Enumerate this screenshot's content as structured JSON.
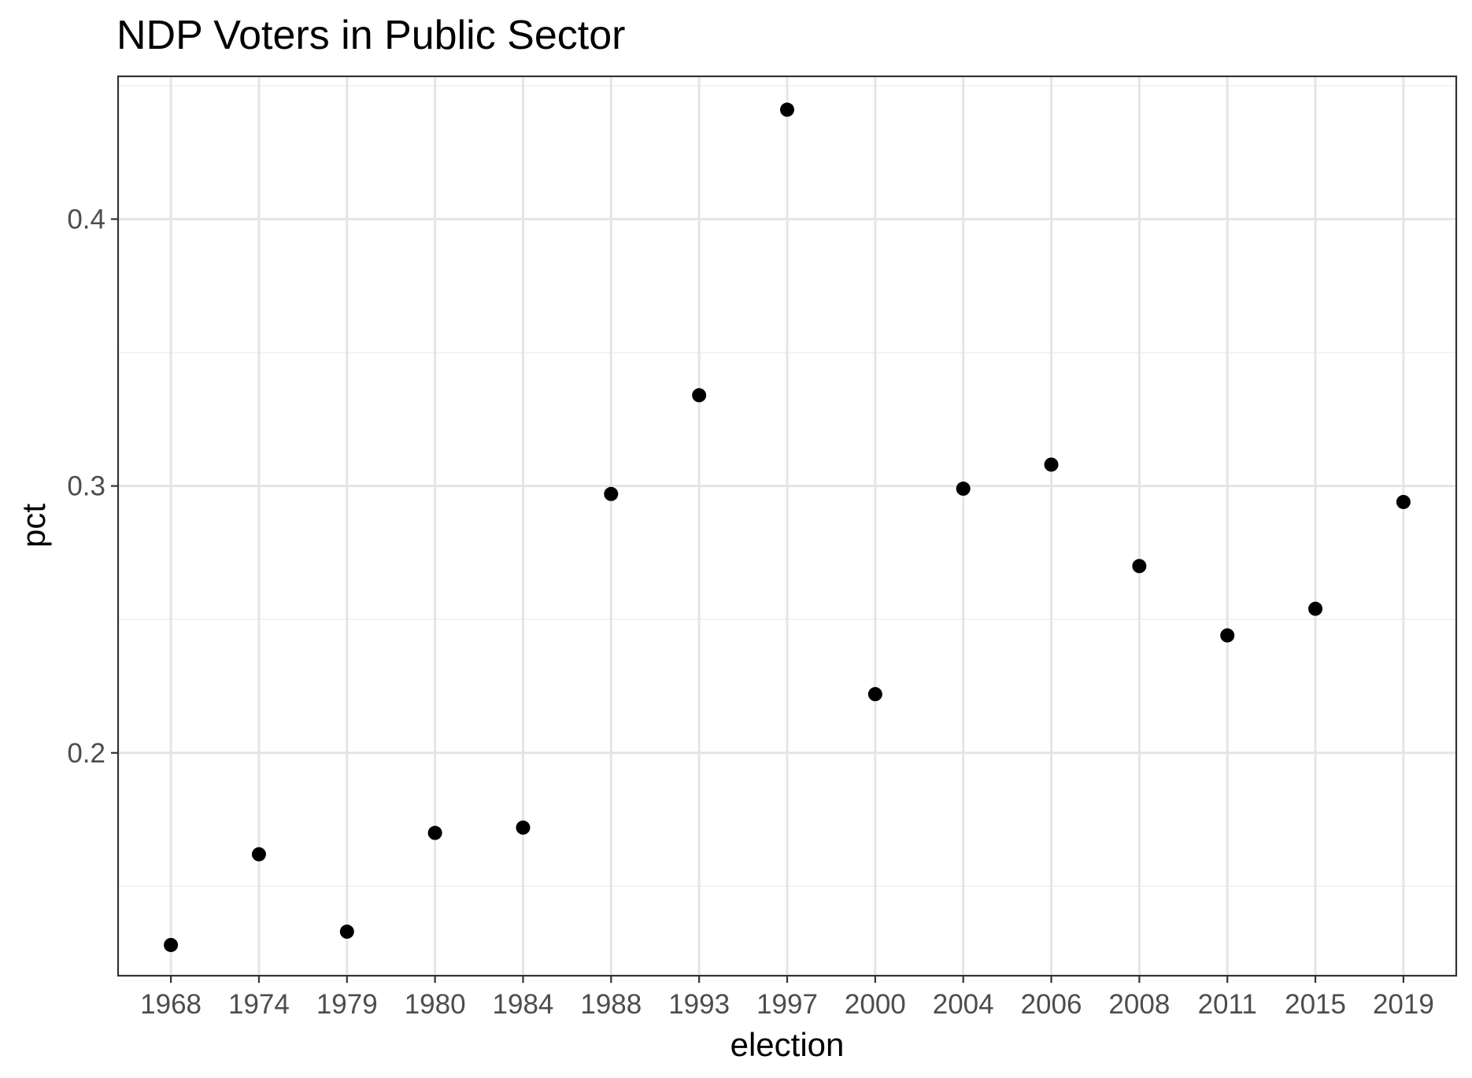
{
  "chart_data": {
    "type": "scatter",
    "title": "NDP Voters in Public Sector",
    "xlabel": "election",
    "ylabel": "pct",
    "categories": [
      "1968",
      "1974",
      "1979",
      "1980",
      "1984",
      "1988",
      "1993",
      "1997",
      "2000",
      "2004",
      "2006",
      "2008",
      "2011",
      "2015",
      "2019"
    ],
    "values": [
      0.128,
      0.162,
      0.133,
      0.17,
      0.172,
      0.297,
      0.334,
      0.441,
      0.222,
      0.299,
      0.308,
      0.27,
      0.244,
      0.254,
      0.294
    ],
    "ylim": [
      0.1165,
      0.4535
    ],
    "y_ticks": [
      0.2,
      0.3,
      0.4
    ],
    "y_tick_labels": [
      "0.2",
      "0.3",
      "0.4"
    ],
    "y_minor_ticks": [
      0.15,
      0.25,
      0.35,
      0.45
    ],
    "grid": true,
    "legend": "none",
    "colors": {
      "point": "#000000",
      "grid": "#e5e5e5",
      "border": "#333333",
      "tick_label": "#4d4d4d"
    }
  }
}
